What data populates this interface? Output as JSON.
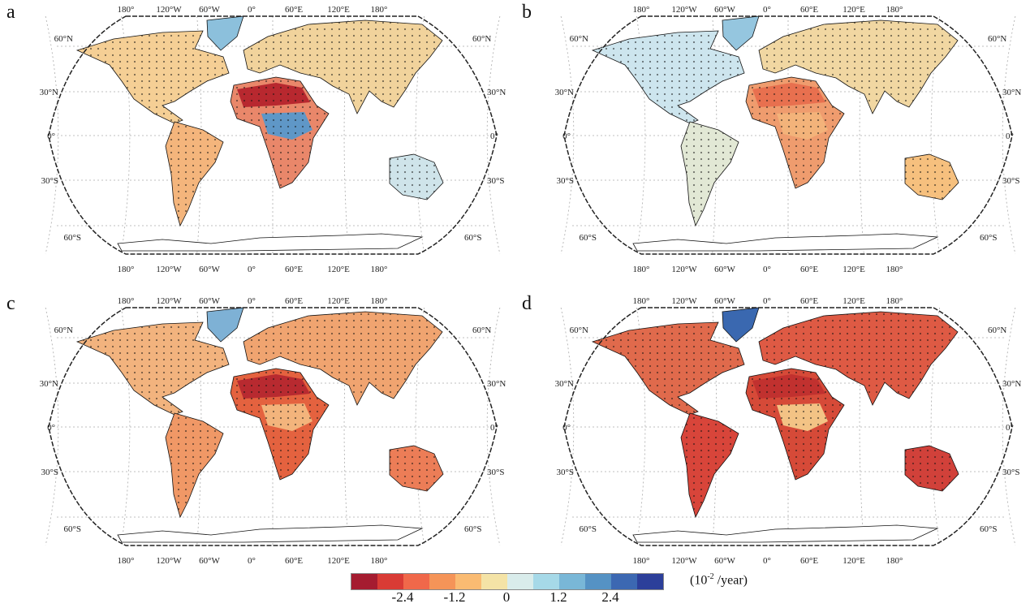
{
  "panels": [
    {
      "label": "a",
      "colors": {
        "north_america": "#f5cf95",
        "greenland": "#8cc0dc",
        "south_america": "#f4b57c",
        "eurasia": "#f1d39c",
        "africa": "#e9876a",
        "australia": "#cfe4ea",
        "sahara": "#b8282f",
        "central_africa": "#5f97c7"
      }
    },
    {
      "label": "b",
      "colors": {
        "north_america": "#cde5ee",
        "greenland": "#95c6df",
        "south_america": "#e2e8d5",
        "eurasia": "#f1d7a2",
        "africa": "#ef9c6e",
        "australia": "#f6c07e",
        "sahara": "#e8704f",
        "central_africa": "#f3b37a"
      }
    },
    {
      "label": "c",
      "colors": {
        "north_america": "#f2b37e",
        "greenland": "#7eb1d5",
        "south_america": "#f09866",
        "eurasia": "#f0a470",
        "africa": "#e4623f",
        "australia": "#ec7d57",
        "sahara": "#b82a30",
        "central_africa": "#f3b47c"
      }
    },
    {
      "label": "d",
      "colors": {
        "north_america": "#e06a4c",
        "greenland": "#3a68b0",
        "south_america": "#d8453a",
        "eurasia": "#de5a44",
        "africa": "#d64a38",
        "australia": "#d1413a",
        "sahara": "#c1312f",
        "central_africa": "#f3c385"
      }
    }
  ],
  "axes": {
    "lon_labels": [
      "180°",
      "120°W",
      "60°W",
      "0°",
      "60°E",
      "120°E",
      "180°"
    ],
    "lat_labels": [
      "60°N",
      "30°N",
      "0°",
      "30°S",
      "60°S"
    ]
  },
  "colorbar": {
    "colors": [
      "#a51c30",
      "#d93b35",
      "#f0684a",
      "#f59458",
      "#fabb72",
      "#f4e3a6",
      "#d9eceb",
      "#a6d9e8",
      "#79b7d7",
      "#5592c4",
      "#3c68b2",
      "#2c3f9a"
    ],
    "ticks": [
      "-2.4",
      "-1.2",
      "0",
      "1.2",
      "2.4"
    ],
    "unit_prefix": "(10",
    "unit_exp": "-2",
    "unit_suffix": " /year)"
  }
}
